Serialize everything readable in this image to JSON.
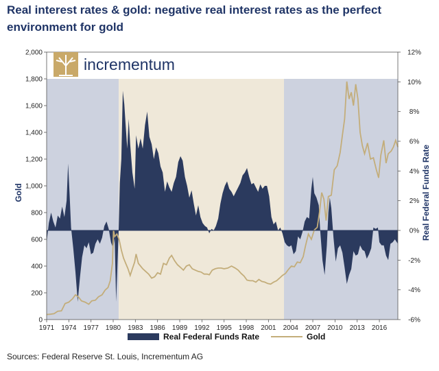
{
  "title": "Real interest rates & gold: negative real interest rates as the perfect environment for gold",
  "source": "Sources: Federal Reserve St. Louis, Incrementum AG",
  "logo_text": "incrementum",
  "colors": {
    "rate_fill": "#2b3a5e",
    "gold_line": "#c3ad7a",
    "shade_blue": "#cdd2df",
    "shade_beige": "#efe8d9"
  },
  "chart_data": {
    "type": "area",
    "xlabel": "",
    "ylabel_left": "Gold",
    "ylabel_right": "Real Federal Funds Rate",
    "x_ticks": [
      "1971",
      "1974",
      "1977",
      "1980",
      "1983",
      "1986",
      "1989",
      "1992",
      "1995",
      "1998",
      "2001",
      "2004",
      "2007",
      "2010",
      "2013",
      "2016"
    ],
    "y_left_ticks": [
      "0",
      "200",
      "400",
      "600",
      "800",
      "1,000",
      "1,200",
      "1,400",
      "1,600",
      "1,800",
      "2,000"
    ],
    "y_right_ticks": [
      "-6%",
      "-4%",
      "-2%",
      "0%",
      "2%",
      "4%",
      "6%",
      "8%",
      "10%",
      "12%"
    ],
    "y_left_lim": [
      0,
      2000
    ],
    "y_right_lim": [
      -6,
      12
    ],
    "x_lim": [
      1971,
      2018.5
    ],
    "shaded_periods": [
      {
        "start": 1971,
        "end": 1980.75,
        "color": "blue"
      },
      {
        "start": 1980.75,
        "end": 2003.1,
        "color": "beige"
      },
      {
        "start": 2003.1,
        "end": 2018.5,
        "color": "blue"
      }
    ],
    "series": [
      {
        "name": "Real Federal Funds Rate",
        "axis": "right",
        "points": [
          [
            1971.0,
            -0.8
          ],
          [
            1971.3,
            0.5
          ],
          [
            1971.6,
            1.2
          ],
          [
            1971.9,
            0.6
          ],
          [
            1972.2,
            0.2
          ],
          [
            1972.5,
            1.0
          ],
          [
            1972.8,
            0.8
          ],
          [
            1973.1,
            1.6
          ],
          [
            1973.4,
            0.9
          ],
          [
            1973.7,
            2.0
          ],
          [
            1973.9,
            4.5
          ],
          [
            1974.1,
            2.5
          ],
          [
            1974.3,
            0.2
          ],
          [
            1974.6,
            -1.2
          ],
          [
            1974.9,
            -2.8
          ],
          [
            1975.2,
            -4.8
          ],
          [
            1975.5,
            -3.2
          ],
          [
            1975.8,
            -1.8
          ],
          [
            1976.1,
            -1.0
          ],
          [
            1976.4,
            -1.2
          ],
          [
            1976.7,
            -0.8
          ],
          [
            1977.0,
            -1.6
          ],
          [
            1977.3,
            -1.5
          ],
          [
            1977.6,
            -0.9
          ],
          [
            1977.9,
            -0.6
          ],
          [
            1978.2,
            -0.9
          ],
          [
            1978.5,
            -0.5
          ],
          [
            1978.8,
            0.3
          ],
          [
            1979.1,
            0.6
          ],
          [
            1979.4,
            0.1
          ],
          [
            1979.7,
            -0.8
          ],
          [
            1980.0,
            -1.2
          ],
          [
            1980.2,
            -0.5
          ],
          [
            1980.4,
            -4.8
          ],
          [
            1980.55,
            -2.8
          ],
          [
            1980.75,
            0.2
          ],
          [
            1980.9,
            3.2
          ],
          [
            1981.1,
            4.8
          ],
          [
            1981.3,
            9.4
          ],
          [
            1981.5,
            8.5
          ],
          [
            1981.7,
            7.0
          ],
          [
            1981.9,
            5.5
          ],
          [
            1982.1,
            7.5
          ],
          [
            1982.3,
            5.8
          ],
          [
            1982.6,
            3.9
          ],
          [
            1982.9,
            2.8
          ],
          [
            1983.1,
            6.4
          ],
          [
            1983.4,
            5.5
          ],
          [
            1983.7,
            6.2
          ],
          [
            1984.0,
            5.5
          ],
          [
            1984.3,
            7.1
          ],
          [
            1984.6,
            8.0
          ],
          [
            1984.9,
            6.3
          ],
          [
            1985.2,
            5.8
          ],
          [
            1985.5,
            4.8
          ],
          [
            1985.8,
            5.6
          ],
          [
            1986.1,
            5.2
          ],
          [
            1986.4,
            4.3
          ],
          [
            1986.7,
            3.9
          ],
          [
            1987.0,
            2.6
          ],
          [
            1987.3,
            3.3
          ],
          [
            1987.6,
            2.9
          ],
          [
            1987.9,
            2.6
          ],
          [
            1988.2,
            3.2
          ],
          [
            1988.5,
            3.6
          ],
          [
            1988.8,
            4.6
          ],
          [
            1989.1,
            5.0
          ],
          [
            1989.4,
            4.7
          ],
          [
            1989.7,
            3.6
          ],
          [
            1990.0,
            3.0
          ],
          [
            1990.3,
            2.2
          ],
          [
            1990.6,
            2.7
          ],
          [
            1990.9,
            1.8
          ],
          [
            1991.2,
            1.0
          ],
          [
            1991.5,
            1.7
          ],
          [
            1991.8,
            0.9
          ],
          [
            1992.1,
            0.5
          ],
          [
            1992.4,
            0.3
          ],
          [
            1992.7,
            0.2
          ],
          [
            1993.0,
            -0.2
          ],
          [
            1993.3,
            0.1
          ],
          [
            1993.6,
            0.0
          ],
          [
            1993.9,
            0.3
          ],
          [
            1994.2,
            0.8
          ],
          [
            1994.5,
            1.8
          ],
          [
            1994.8,
            2.5
          ],
          [
            1995.1,
            3.0
          ],
          [
            1995.4,
            3.3
          ],
          [
            1995.7,
            2.8
          ],
          [
            1996.0,
            2.6
          ],
          [
            1996.3,
            2.3
          ],
          [
            1996.6,
            2.6
          ],
          [
            1996.9,
            2.9
          ],
          [
            1997.2,
            3.2
          ],
          [
            1997.5,
            3.7
          ],
          [
            1997.8,
            3.9
          ],
          [
            1998.1,
            4.2
          ],
          [
            1998.4,
            3.6
          ],
          [
            1998.7,
            3.1
          ],
          [
            1999.0,
            3.2
          ],
          [
            1999.3,
            2.9
          ],
          [
            1999.6,
            2.6
          ],
          [
            1999.9,
            3.1
          ],
          [
            2000.2,
            2.8
          ],
          [
            2000.5,
            3.0
          ],
          [
            2000.8,
            3.0
          ],
          [
            2001.1,
            2.3
          ],
          [
            2001.4,
            0.9
          ],
          [
            2001.7,
            0.4
          ],
          [
            2002.0,
            0.6
          ],
          [
            2002.3,
            0.0
          ],
          [
            2002.6,
            0.2
          ],
          [
            2002.9,
            -0.2
          ],
          [
            2003.2,
            -0.8
          ],
          [
            2003.5,
            -1.0
          ],
          [
            2003.8,
            -1.1
          ],
          [
            2004.1,
            -1.0
          ],
          [
            2004.4,
            -1.6
          ],
          [
            2004.7,
            -1.4
          ],
          [
            2005.0,
            -0.4
          ],
          [
            2005.3,
            -0.6
          ],
          [
            2005.6,
            -0.1
          ],
          [
            2005.9,
            0.6
          ],
          [
            2006.2,
            0.9
          ],
          [
            2006.5,
            0.8
          ],
          [
            2006.8,
            2.8
          ],
          [
            2007.0,
            3.6
          ],
          [
            2007.2,
            2.5
          ],
          [
            2007.5,
            2.2
          ],
          [
            2007.8,
            1.7
          ],
          [
            2008.0,
            0.0
          ],
          [
            2008.3,
            -2.0
          ],
          [
            2008.6,
            -3.0
          ],
          [
            2008.9,
            -1.0
          ],
          [
            2009.1,
            1.2
          ],
          [
            2009.3,
            2.2
          ],
          [
            2009.5,
            1.5
          ],
          [
            2009.8,
            -0.5
          ],
          [
            2010.1,
            -2.1
          ],
          [
            2010.4,
            -1.2
          ],
          [
            2010.7,
            -1.0
          ],
          [
            2011.0,
            -1.5
          ],
          [
            2011.3,
            -2.5
          ],
          [
            2011.6,
            -3.6
          ],
          [
            2011.9,
            -3.0
          ],
          [
            2012.2,
            -2.6
          ],
          [
            2012.5,
            -1.4
          ],
          [
            2012.8,
            -1.7
          ],
          [
            2013.1,
            -1.6
          ],
          [
            2013.4,
            -1.0
          ],
          [
            2013.7,
            -1.3
          ],
          [
            2014.0,
            -1.4
          ],
          [
            2014.3,
            -1.9
          ],
          [
            2014.6,
            -1.6
          ],
          [
            2014.9,
            -1.2
          ],
          [
            2015.2,
            0.2
          ],
          [
            2015.5,
            0.1
          ],
          [
            2015.8,
            0.2
          ],
          [
            2016.0,
            -0.8
          ],
          [
            2016.3,
            -1.0
          ],
          [
            2016.6,
            -1.0
          ],
          [
            2016.9,
            -1.7
          ],
          [
            2017.2,
            -2.0
          ],
          [
            2017.5,
            -0.9
          ],
          [
            2017.8,
            -0.8
          ],
          [
            2018.1,
            -0.6
          ],
          [
            2018.5,
            -0.9
          ]
        ]
      },
      {
        "name": "Gold",
        "axis": "left",
        "points": [
          [
            1971.0,
            38
          ],
          [
            1971.5,
            40
          ],
          [
            1972.0,
            44
          ],
          [
            1972.5,
            62
          ],
          [
            1973.0,
            65
          ],
          [
            1973.5,
            120
          ],
          [
            1974.0,
            130
          ],
          [
            1974.5,
            155
          ],
          [
            1974.9,
            185
          ],
          [
            1975.3,
            170
          ],
          [
            1975.7,
            140
          ],
          [
            1976.2,
            130
          ],
          [
            1976.7,
            115
          ],
          [
            1977.1,
            140
          ],
          [
            1977.6,
            145
          ],
          [
            1978.0,
            170
          ],
          [
            1978.5,
            185
          ],
          [
            1978.9,
            220
          ],
          [
            1979.3,
            240
          ],
          [
            1979.6,
            290
          ],
          [
            1979.9,
            420
          ],
          [
            1980.05,
            670
          ],
          [
            1980.2,
            620
          ],
          [
            1980.5,
            640
          ],
          [
            1980.8,
            600
          ],
          [
            1981.1,
            520
          ],
          [
            1981.4,
            460
          ],
          [
            1981.7,
            420
          ],
          [
            1982.0,
            380
          ],
          [
            1982.3,
            330
          ],
          [
            1982.6,
            380
          ],
          [
            1982.9,
            430
          ],
          [
            1983.1,
            490
          ],
          [
            1983.4,
            420
          ],
          [
            1983.7,
            400
          ],
          [
            1984.0,
            380
          ],
          [
            1984.4,
            360
          ],
          [
            1984.8,
            340
          ],
          [
            1985.2,
            310
          ],
          [
            1985.6,
            320
          ],
          [
            1986.0,
            350
          ],
          [
            1986.4,
            340
          ],
          [
            1986.8,
            420
          ],
          [
            1987.2,
            410
          ],
          [
            1987.6,
            460
          ],
          [
            1987.9,
            480
          ],
          [
            1988.3,
            440
          ],
          [
            1988.7,
            410
          ],
          [
            1989.1,
            390
          ],
          [
            1989.5,
            370
          ],
          [
            1989.9,
            400
          ],
          [
            1990.3,
            410
          ],
          [
            1990.7,
            380
          ],
          [
            1991.1,
            370
          ],
          [
            1991.5,
            360
          ],
          [
            1991.9,
            355
          ],
          [
            1992.3,
            340
          ],
          [
            1992.7,
            340
          ],
          [
            1993.0,
            335
          ],
          [
            1993.4,
            370
          ],
          [
            1993.8,
            380
          ],
          [
            1994.2,
            385
          ],
          [
            1994.6,
            385
          ],
          [
            1995.0,
            380
          ],
          [
            1995.5,
            385
          ],
          [
            1996.0,
            400
          ],
          [
            1996.5,
            385
          ],
          [
            1996.9,
            370
          ],
          [
            1997.3,
            345
          ],
          [
            1997.7,
            325
          ],
          [
            1998.1,
            295
          ],
          [
            1998.5,
            290
          ],
          [
            1998.9,
            290
          ],
          [
            1999.3,
            280
          ],
          [
            1999.7,
            300
          ],
          [
            2000.1,
            285
          ],
          [
            2000.5,
            280
          ],
          [
            2000.9,
            270
          ],
          [
            2001.3,
            265
          ],
          [
            2001.7,
            280
          ],
          [
            2002.1,
            290
          ],
          [
            2002.5,
            310
          ],
          [
            2002.9,
            330
          ],
          [
            2003.3,
            345
          ],
          [
            2003.7,
            375
          ],
          [
            2004.1,
            400
          ],
          [
            2004.5,
            395
          ],
          [
            2004.9,
            430
          ],
          [
            2005.3,
            425
          ],
          [
            2005.7,
            470
          ],
          [
            2006.0,
            550
          ],
          [
            2006.4,
            640
          ],
          [
            2006.8,
            600
          ],
          [
            2007.2,
            670
          ],
          [
            2007.6,
            690
          ],
          [
            2007.9,
            800
          ],
          [
            2008.2,
            950
          ],
          [
            2008.5,
            900
          ],
          [
            2008.8,
            740
          ],
          [
            2009.1,
            920
          ],
          [
            2009.5,
            930
          ],
          [
            2009.9,
            1120
          ],
          [
            2010.3,
            1150
          ],
          [
            2010.7,
            1250
          ],
          [
            2011.0,
            1380
          ],
          [
            2011.3,
            1500
          ],
          [
            2011.6,
            1780
          ],
          [
            2011.9,
            1650
          ],
          [
            2012.2,
            1700
          ],
          [
            2012.5,
            1600
          ],
          [
            2012.8,
            1760
          ],
          [
            2013.1,
            1650
          ],
          [
            2013.4,
            1400
          ],
          [
            2013.7,
            1300
          ],
          [
            2014.0,
            1240
          ],
          [
            2014.4,
            1320
          ],
          [
            2014.8,
            1200
          ],
          [
            2015.2,
            1210
          ],
          [
            2015.6,
            1120
          ],
          [
            2015.9,
            1060
          ],
          [
            2016.2,
            1230
          ],
          [
            2016.6,
            1340
          ],
          [
            2016.9,
            1170
          ],
          [
            2017.2,
            1240
          ],
          [
            2017.6,
            1260
          ],
          [
            2017.9,
            1290
          ],
          [
            2018.2,
            1340
          ],
          [
            2018.5,
            1290
          ]
        ]
      }
    ],
    "legend": [
      "Real Federal Funds Rate",
      "Gold"
    ],
    "legend_position": "bottom"
  }
}
